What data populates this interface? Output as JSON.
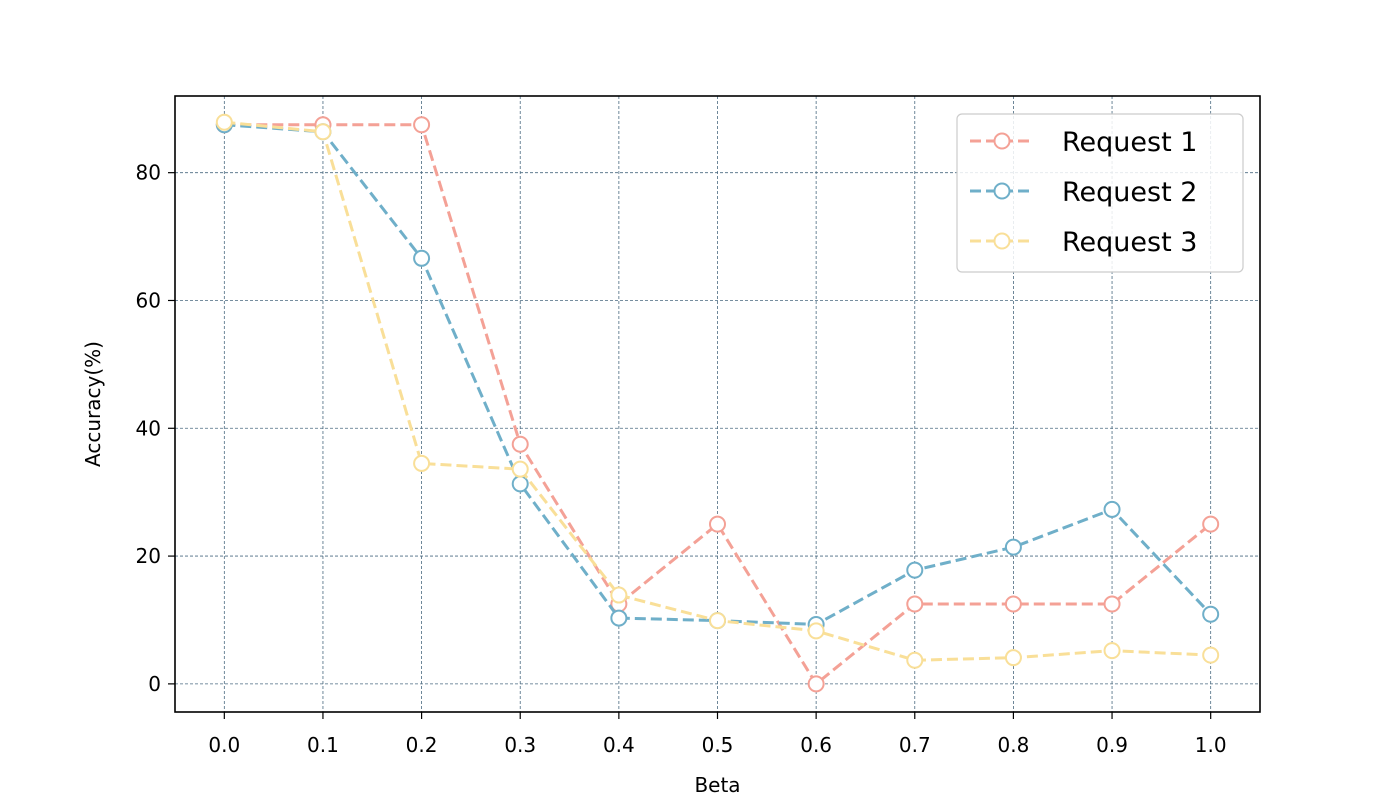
{
  "chart_data": {
    "type": "line",
    "title": "",
    "xlabel": "Beta",
    "ylabel": "Accuracy(%)",
    "x": [
      0.0,
      0.1,
      0.2,
      0.3,
      0.4,
      0.5,
      0.6,
      0.7,
      0.8,
      0.9,
      1.0
    ],
    "x_tick_labels": [
      "0.0",
      "0.1",
      "0.2",
      "0.3",
      "0.4",
      "0.5",
      "0.6",
      "0.7",
      "0.8",
      "0.9",
      "1.0"
    ],
    "y_ticks": [
      0,
      20,
      40,
      60,
      80
    ],
    "y_tick_labels": [
      "0",
      "20",
      "40",
      "60",
      "80"
    ],
    "xlim": [
      -0.05,
      1.05
    ],
    "ylim": [
      -4.4,
      92.0
    ],
    "grid": true,
    "legend_position": "top-right",
    "marker": "hollow-circle",
    "line_style": "dashed",
    "grid_color": "#4a6a80",
    "series": [
      {
        "name": "Request 1",
        "color": "#f4a196",
        "values": [
          87.5,
          87.5,
          87.5,
          37.5,
          12.5,
          25.0,
          0.0,
          12.5,
          12.5,
          12.5,
          25.0
        ]
      },
      {
        "name": "Request 2",
        "color": "#6fafc9",
        "values": [
          87.5,
          86.4,
          66.6,
          31.3,
          10.3,
          9.9,
          9.3,
          17.8,
          21.4,
          27.3,
          10.9
        ]
      },
      {
        "name": "Request 3",
        "color": "#f9df98",
        "values": [
          87.9,
          86.4,
          34.5,
          33.6,
          13.9,
          9.9,
          8.3,
          3.7,
          4.1,
          5.2,
          4.5
        ]
      }
    ]
  }
}
